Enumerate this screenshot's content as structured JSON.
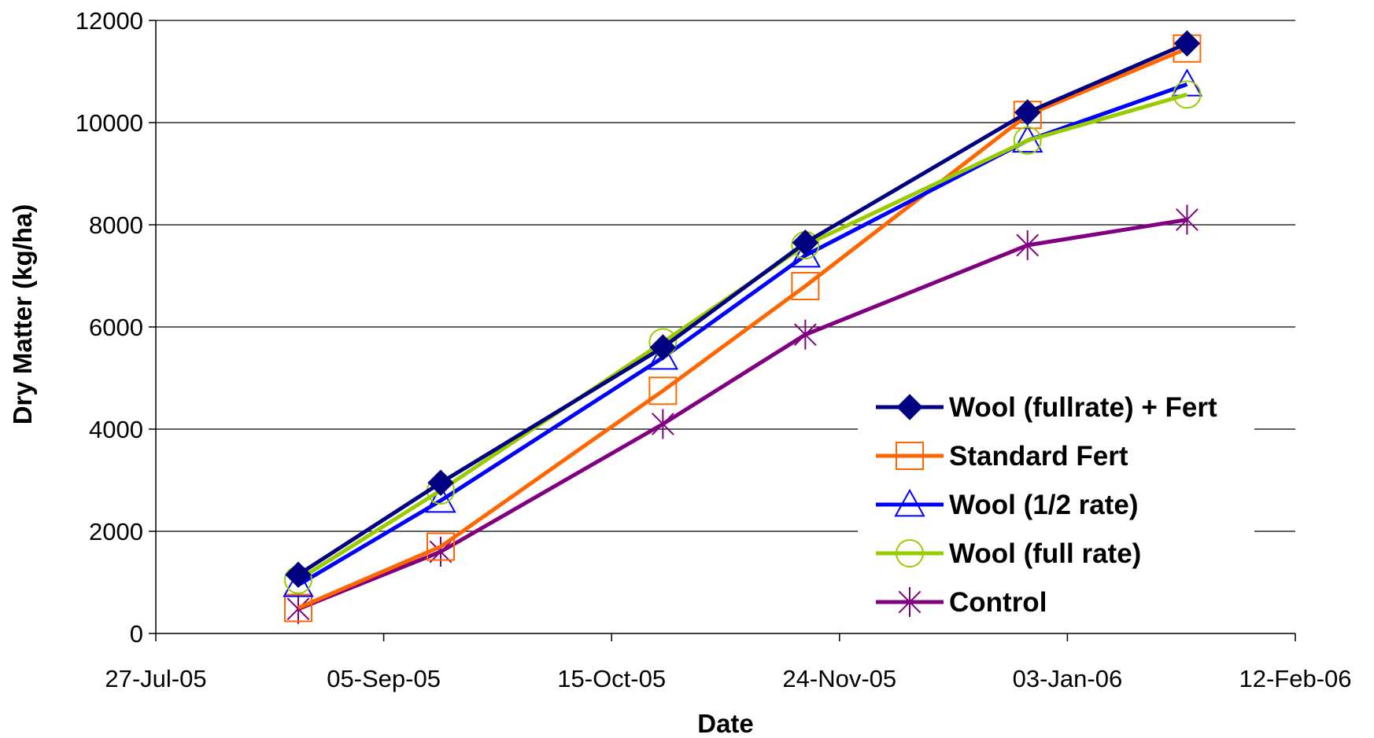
{
  "chart_data": {
    "type": "line",
    "title": "",
    "xlabel": "Date",
    "ylabel": "Dry Matter (kg/ha)",
    "x_axis": {
      "min": "2005-07-27",
      "max": "2006-02-12",
      "ticks": [
        {
          "date": "2005-07-27",
          "label": "27-Jul-05"
        },
        {
          "date": "2005-09-05",
          "label": "05-Sep-05"
        },
        {
          "date": "2005-10-15",
          "label": "15-Oct-05"
        },
        {
          "date": "2005-11-24",
          "label": "24-Nov-05"
        },
        {
          "date": "2006-01-03",
          "label": "03-Jan-06"
        },
        {
          "date": "2006-02-12",
          "label": "12-Feb-06"
        }
      ]
    },
    "y_axis": {
      "min": 0,
      "max": 12000,
      "ticks": [
        0,
        2000,
        4000,
        6000,
        8000,
        10000,
        12000
      ],
      "tick_labels": [
        "0",
        "2000",
        "4000",
        "6000",
        "8000",
        "10000",
        "12000"
      ]
    },
    "grid": "horizontal",
    "legend_position": "right, lower",
    "x": [
      "2005-08-21",
      "2005-09-15",
      "2005-10-24",
      "2005-11-18",
      "2005-12-27",
      "2006-01-24"
    ],
    "series": [
      {
        "name": "Wool (fullrate) + Fert",
        "color": "#000080",
        "marker": "diamond",
        "values": [
          1150,
          2950,
          5600,
          7650,
          10200,
          11550
        ]
      },
      {
        "name": "Standard Fert",
        "color": "#FF6600",
        "marker": "square",
        "values": [
          500,
          1700,
          4750,
          6800,
          10150,
          11450
        ]
      },
      {
        "name": "Wool (1/2 rate)",
        "color": "#0000FF",
        "marker": "triangle",
        "values": [
          950,
          2600,
          5400,
          7400,
          9650,
          10750
        ]
      },
      {
        "name": "Wool (full rate)",
        "color": "#99CC00",
        "marker": "circle",
        "values": [
          1050,
          2800,
          5700,
          7600,
          9650,
          10550
        ]
      },
      {
        "name": "Control",
        "color": "#800080",
        "marker": "asterisk",
        "values": [
          480,
          1600,
          4100,
          5850,
          7600,
          8100
        ]
      }
    ]
  }
}
